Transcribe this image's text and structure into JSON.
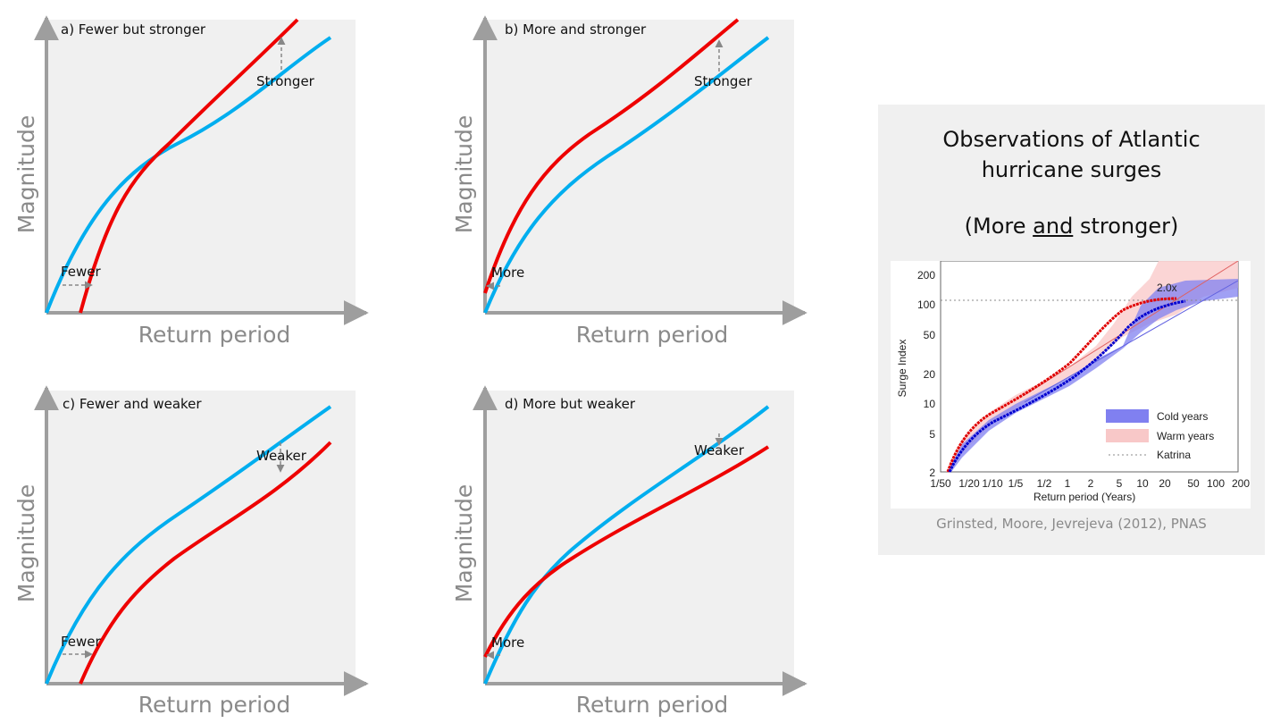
{
  "panels": [
    {
      "id": "a",
      "label": "a) Fewer but stronger",
      "x_axis_title": "Return period",
      "y_axis_title": "Magnitude",
      "notes": [
        "Stronger",
        "Fewer"
      ]
    },
    {
      "id": "b",
      "label": "b) More and stronger",
      "x_axis_title": "Return period",
      "y_axis_title": "Magnitude",
      "notes": [
        "Stronger",
        "More"
      ]
    },
    {
      "id": "c",
      "label": "c) Fewer and weaker",
      "x_axis_title": "Return period",
      "y_axis_title": "Magnitude",
      "notes": [
        "Weaker",
        "Fewer"
      ]
    },
    {
      "id": "d",
      "label": "d) More but weaker",
      "x_axis_title": "Return period",
      "y_axis_title": "Magnitude",
      "notes": [
        "Weaker",
        "More"
      ]
    }
  ],
  "colors": {
    "baseline_curve": "#00aeef",
    "changed_curve": "#ee0000",
    "panel_bg": "#f0f0f0",
    "axis": "#9e9e9e"
  },
  "observations": {
    "title_line1": "Observations of Atlantic",
    "title_line2": "hurricane surges",
    "subtitle_prefix": "(More ",
    "subtitle_underlined": "and",
    "subtitle_suffix": " stronger)",
    "credit": "Grinsted, Moore, Jevrejeva (2012), PNAS",
    "figure": {
      "y_axis_label": "Surge Index",
      "x_axis_label": "Return period (Years)",
      "y_ticks": [
        "200",
        "100",
        "50",
        "20",
        "10",
        "5",
        "2"
      ],
      "x_ticks": [
        "1/50",
        "1/20",
        "1/10",
        "1/5",
        "1/2",
        "1",
        "2",
        "5",
        "10",
        "20",
        "50",
        "100",
        "200"
      ],
      "annotation": "2.0x",
      "legend": [
        "Cold years",
        "Warm years",
        "Katrina"
      ],
      "legend_colors": [
        "#8080f0",
        "#f8c8c8",
        "#888888"
      ]
    }
  }
}
